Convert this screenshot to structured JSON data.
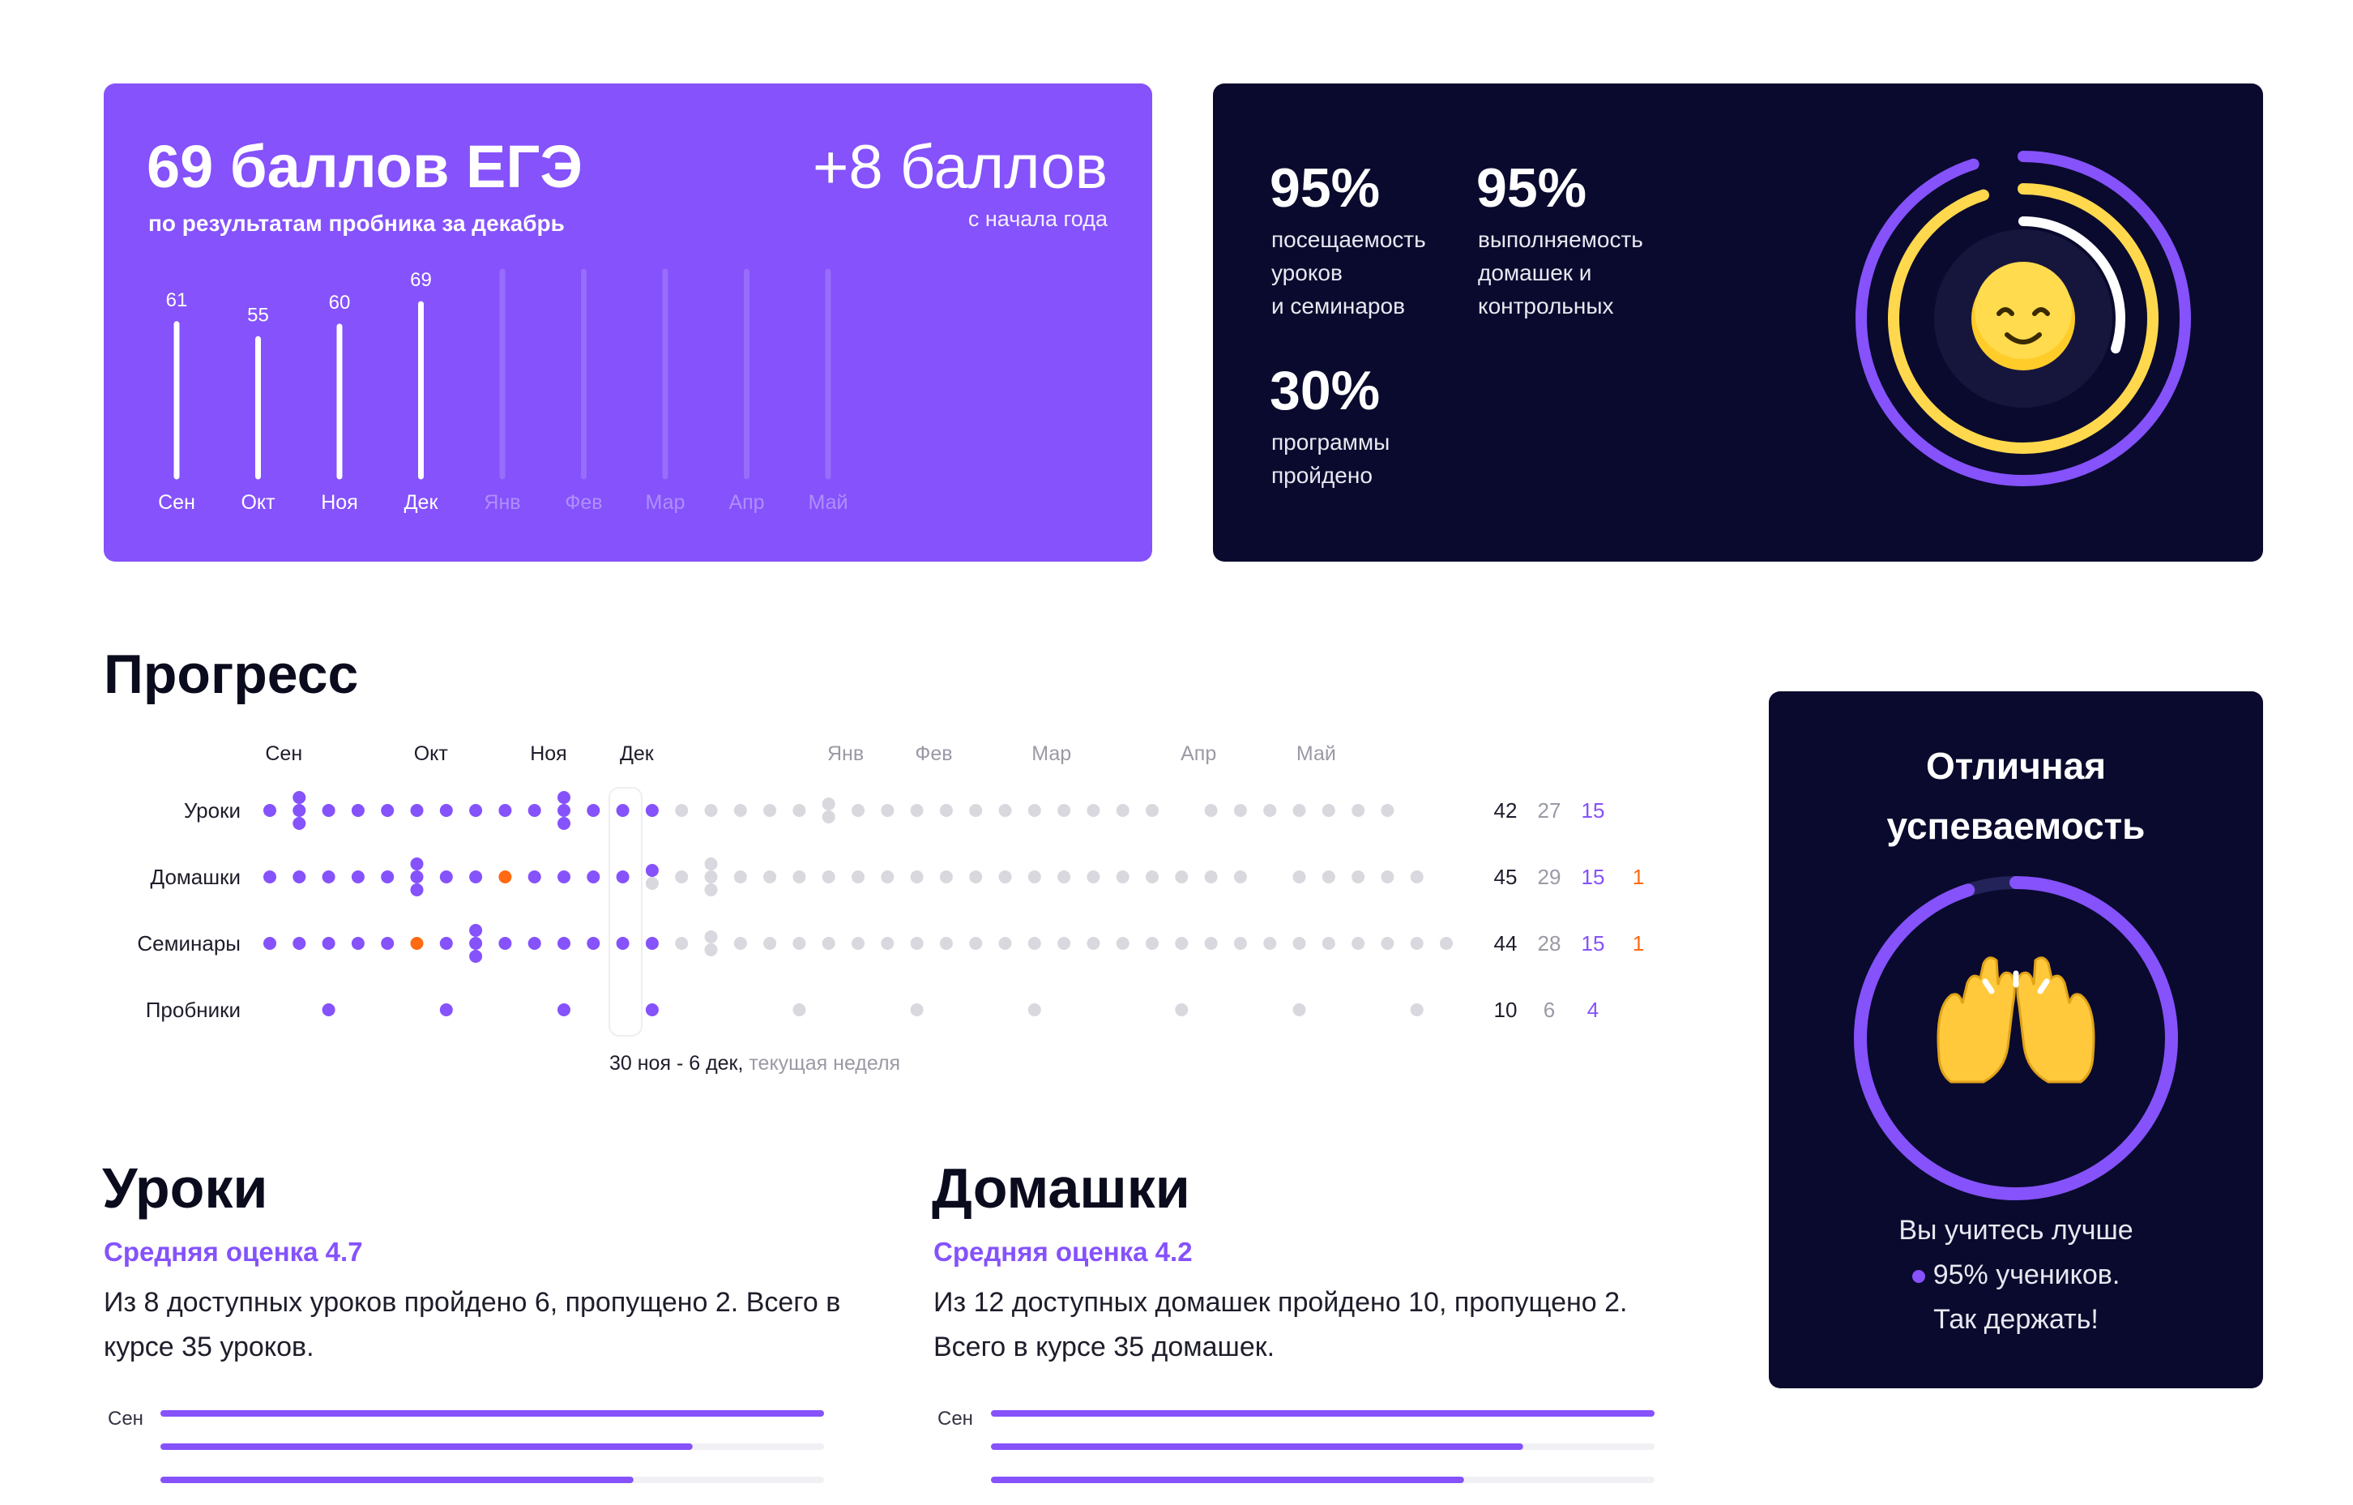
{
  "score_card": {
    "title": "69 баллов ЕГЭ",
    "subtitle": "по результатам пробника за декабрь",
    "delta": "+8 баллов",
    "delta_sub": "с начала года",
    "months": [
      "Сен",
      "Окт",
      "Ноя",
      "Дек",
      "Янв",
      "Фев",
      "Мар",
      "Апр",
      "Май"
    ],
    "scores": [
      61,
      55,
      60,
      69,
      null,
      null,
      null,
      null,
      null
    ],
    "max_score": 100
  },
  "stats_card": {
    "attendance": {
      "value": "95%",
      "label": "посещаемость\nуроков\nи семинаров",
      "color": "#8552fb"
    },
    "homework": {
      "value": "95%",
      "label": "выполняемость\nдомашек и\nконтрольных",
      "color": "#ffd84d"
    },
    "program": {
      "value": "30%",
      "label": "программы\nпройдено",
      "color": "#ffffff"
    },
    "ring_values": [
      0.95,
      0.95,
      0.3
    ],
    "center_icon": "smiley-icon"
  },
  "progress": {
    "title": "Прогресс",
    "months": [
      "Сен",
      "Окт",
      "Ноя",
      "Дек",
      "Янв",
      "Фев",
      "Мар",
      "Апр",
      "Май"
    ],
    "rows": [
      {
        "label": "Уроки",
        "counts": [
          "42",
          "27",
          "15",
          ""
        ]
      },
      {
        "label": "Домашки",
        "counts": [
          "45",
          "29",
          "15",
          "1"
        ]
      },
      {
        "label": "Семинары",
        "counts": [
          "44",
          "28",
          "15",
          "1"
        ]
      },
      {
        "label": "Пробники",
        "counts": [
          "10",
          "6",
          "4",
          ""
        ]
      }
    ],
    "current_week": "30 ноя - 6 дек,",
    "current_week_note": "текущая неделя",
    "colors": {
      "done": "#8552fb",
      "missed": "#ff6a13",
      "future": "#d8d8de",
      "total": "#1d1d2b"
    }
  },
  "lessons": {
    "title": "Уроки",
    "grade": "Средняя оценка 4.7",
    "text": "Из 8 доступных уроков пройдено 6, пропущено 2. Всего в курсе 35 уроков.",
    "month": "Сен",
    "bars": [
      1.0,
      0.8,
      0.71
    ]
  },
  "homework": {
    "title": "Домашки",
    "grade": "Средняя оценка 4.2",
    "text": "Из 12 доступных домашек пройдено 10, пропущено 2. Всего в курсе 35 домашек.",
    "month": "Сен",
    "bars": [
      1.0,
      0.8,
      0.71
    ]
  },
  "award": {
    "title": "Отличная\nуспеваемость",
    "ring_value": 0.95,
    "icon": "raised-hands-icon",
    "text_line1": "Вы учитесь лучше",
    "text_line2": "95% учеников.",
    "text_line3": "Так держать!"
  }
}
